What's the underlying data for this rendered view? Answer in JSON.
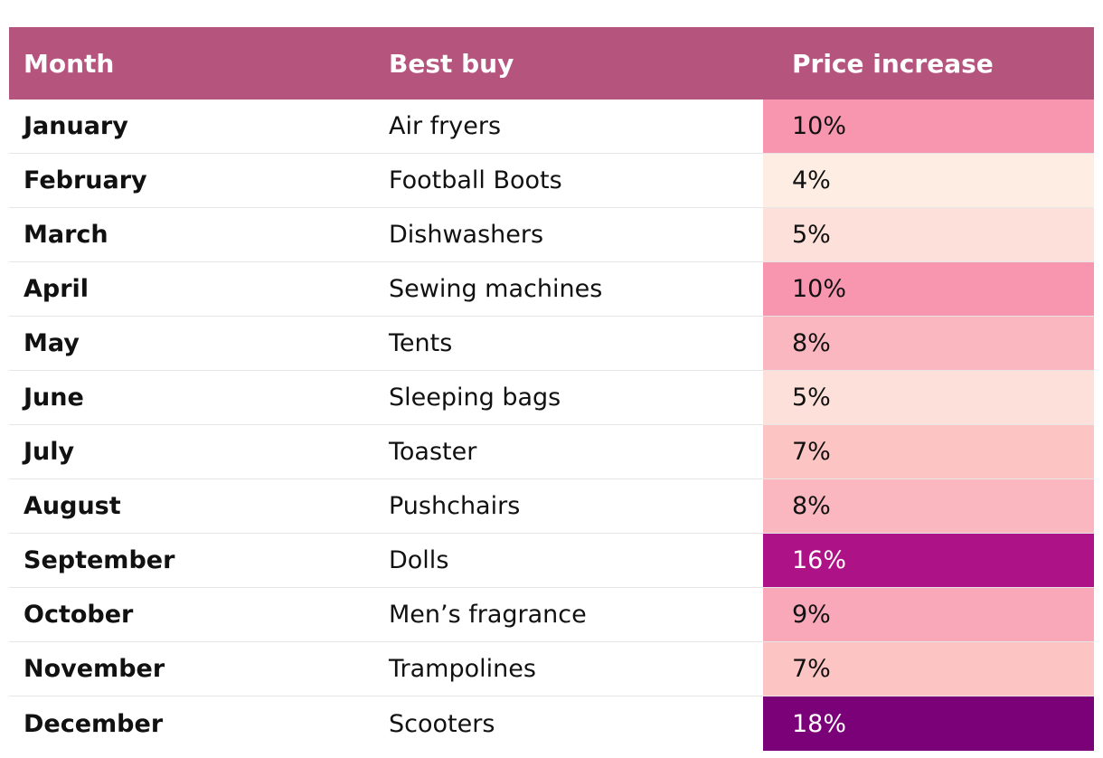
{
  "chart_data": {
    "type": "table",
    "columns": [
      "Month",
      "Best buy",
      "Price increase"
    ],
    "rows": [
      {
        "month": "January",
        "item": "Air fryers",
        "price": "10%",
        "value": 10,
        "color": "#f896b0"
      },
      {
        "month": "February",
        "item": "Football Boots",
        "price": "4%",
        "value": 4,
        "color": "#feede3"
      },
      {
        "month": "March",
        "item": "Dishwashers",
        "price": "5%",
        "value": 5,
        "color": "#fde0da"
      },
      {
        "month": "April",
        "item": "Sewing machines",
        "price": "10%",
        "value": 10,
        "color": "#f896b0"
      },
      {
        "month": "May",
        "item": "Tents",
        "price": "8%",
        "value": 8,
        "color": "#fbb7bf"
      },
      {
        "month": "June",
        "item": "Sleeping bags",
        "price": "5%",
        "value": 5,
        "color": "#fde0da"
      },
      {
        "month": "July",
        "item": "Toaster",
        "price": "7%",
        "value": 7,
        "color": "#fcc5c3"
      },
      {
        "month": "August",
        "item": "Pushchairs",
        "price": "8%",
        "value": 8,
        "color": "#fbb7bf"
      },
      {
        "month": "September",
        "item": "Dolls",
        "price": "16%",
        "value": 16,
        "color": "#ad1387"
      },
      {
        "month": "October",
        "item": "Men’s fragrance",
        "price": "9%",
        "value": 9,
        "color": "#f9a8b9"
      },
      {
        "month": "November",
        "item": "Trampolines",
        "price": "7%",
        "value": 7,
        "color": "#fcc5c3"
      },
      {
        "month": "December",
        "item": "Scooters",
        "price": "18%",
        "value": 18,
        "color": "#7a0177"
      }
    ],
    "header_color": "#b5557e"
  }
}
